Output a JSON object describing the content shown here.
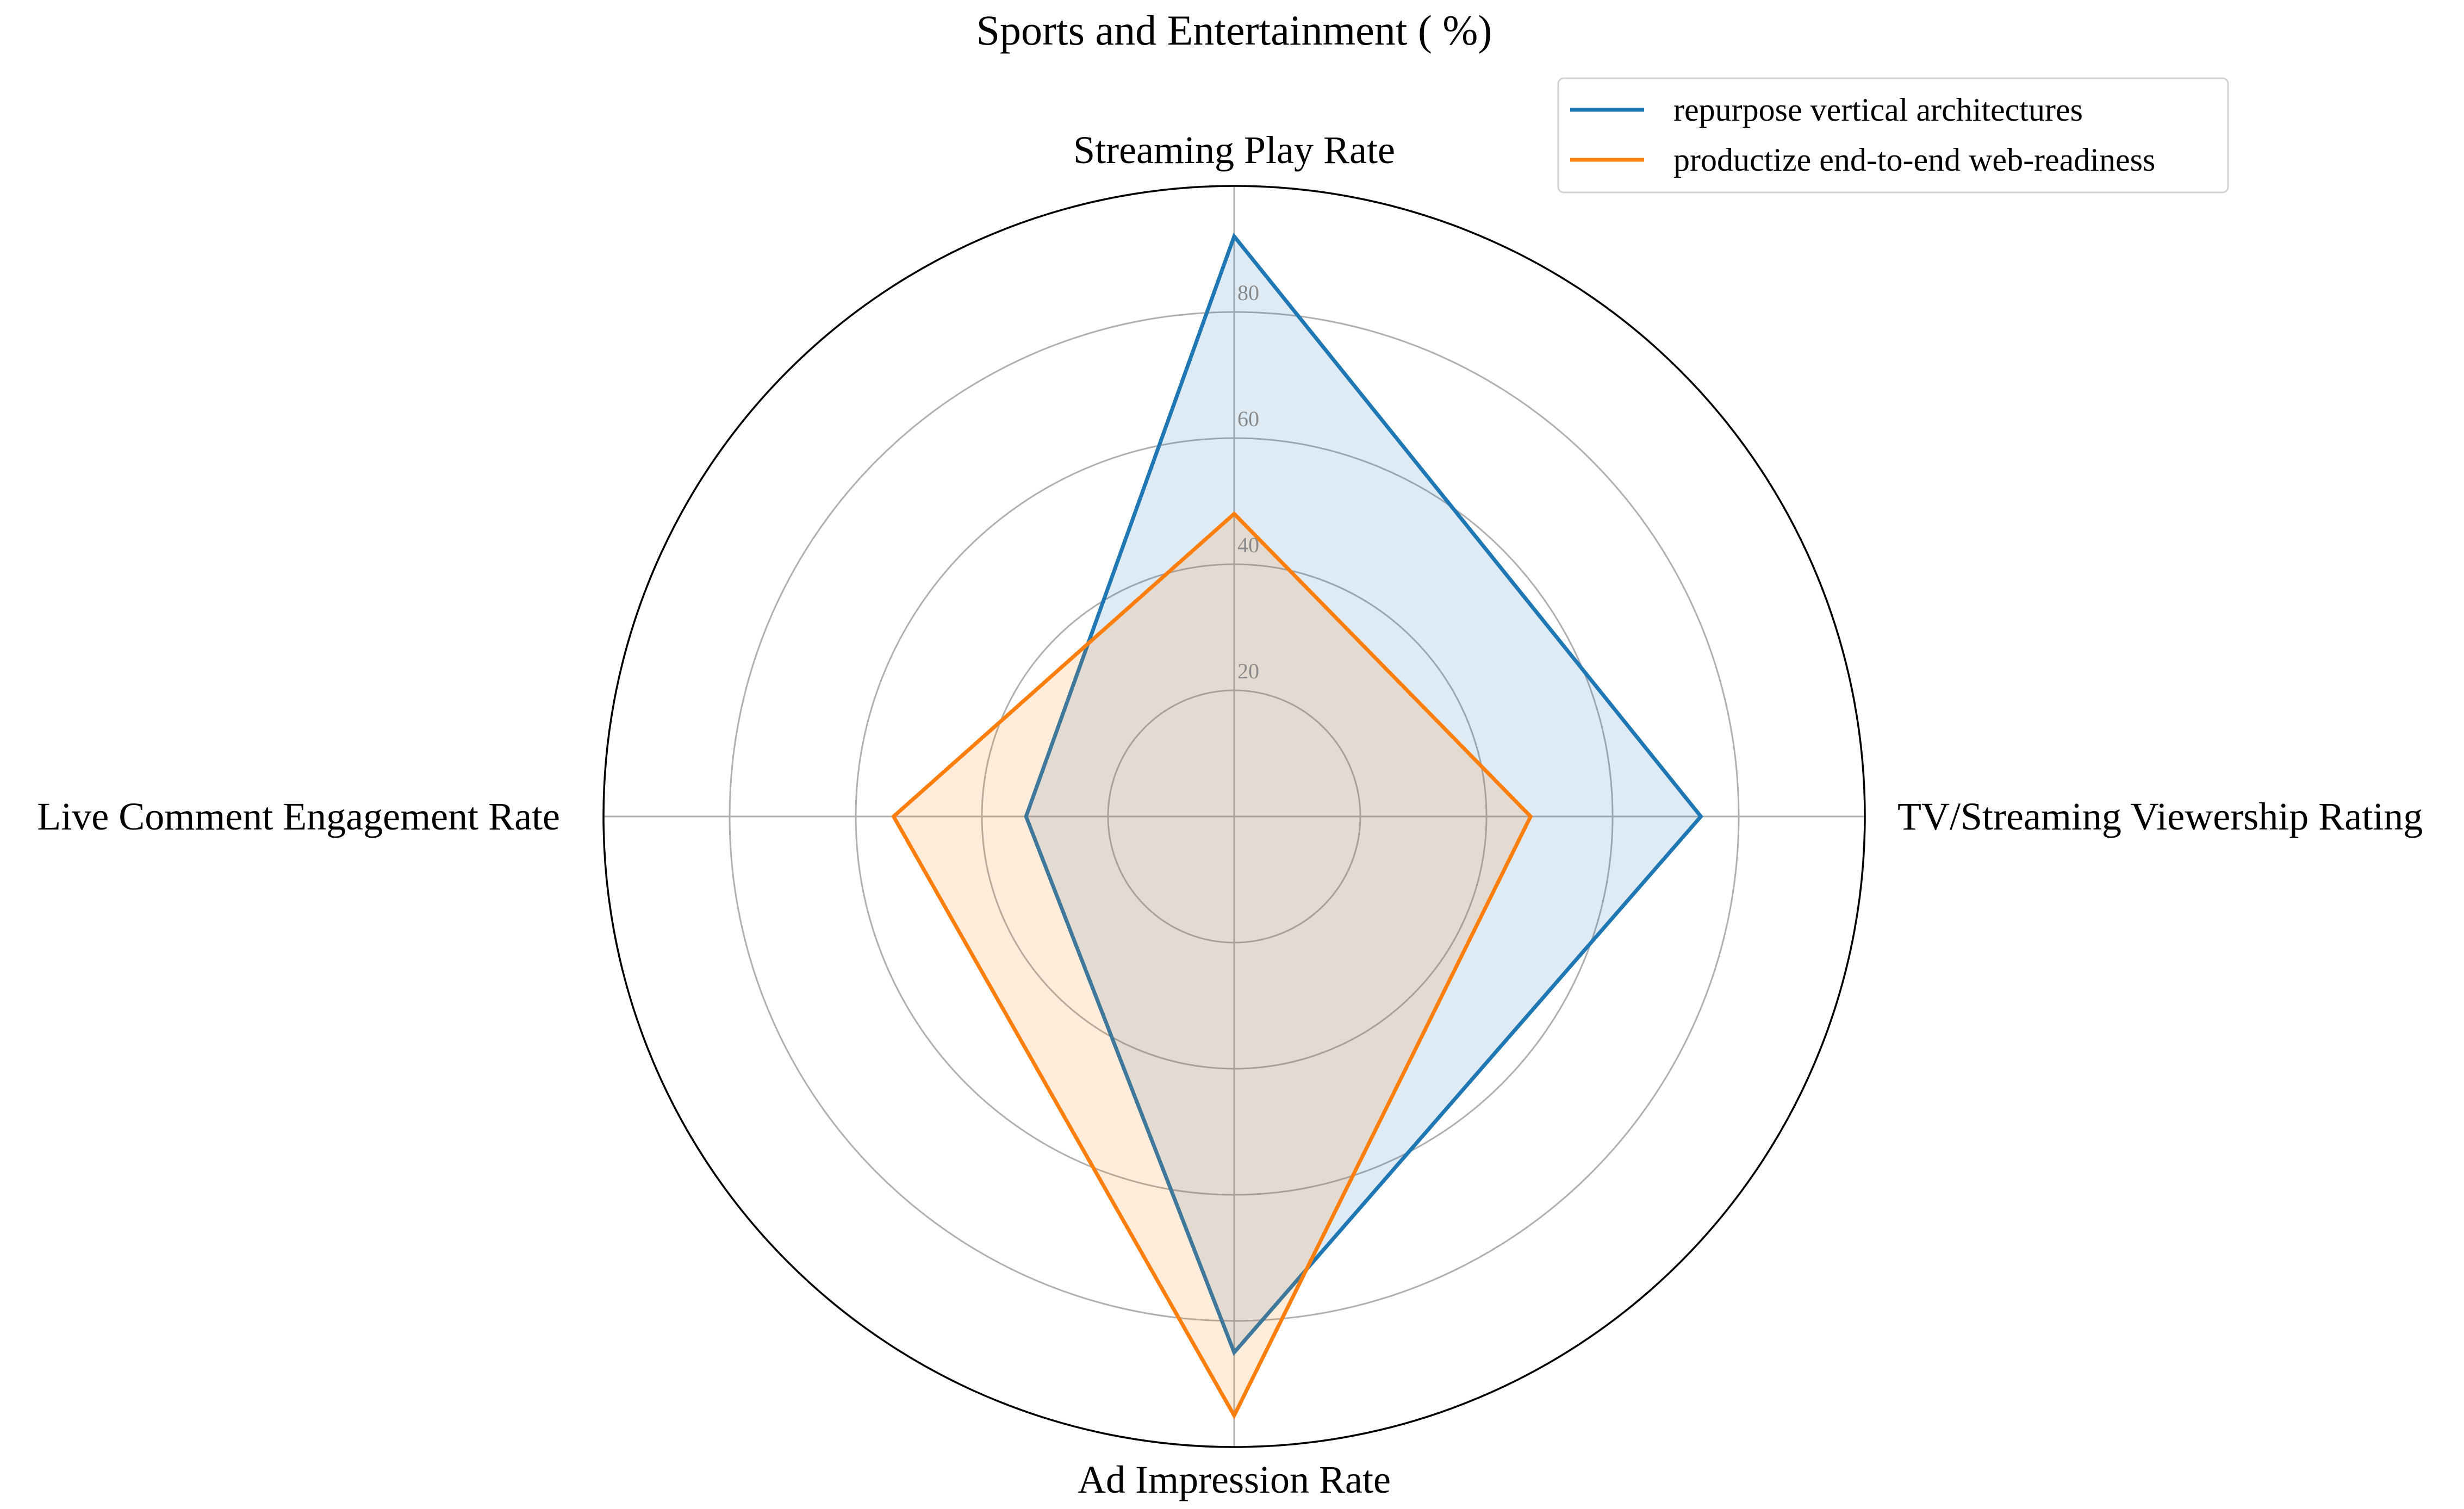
{
  "chart_data": {
    "type": "radar",
    "title": "Sports and Entertainment ( %)",
    "categories": [
      "Streaming Play Rate",
      "TV/Streaming Viewership Rating",
      "Ad Impression Rate",
      "Live Comment Engagement Rate"
    ],
    "series": [
      {
        "name": "repurpose vertical architectures",
        "values": [
          92,
          74,
          85,
          33
        ],
        "color": "#1f77b4"
      },
      {
        "name": "productize end-to-end web-readiness",
        "values": [
          48,
          47,
          95,
          54
        ],
        "color": "#ff7f0e"
      }
    ],
    "rlim": [
      0,
      100
    ],
    "radial_ticks": [
      20,
      40,
      60,
      80
    ],
    "radial_tick_labels": [
      "20",
      "40",
      "60",
      "80"
    ],
    "grid": true,
    "legend_position": "top-right"
  }
}
